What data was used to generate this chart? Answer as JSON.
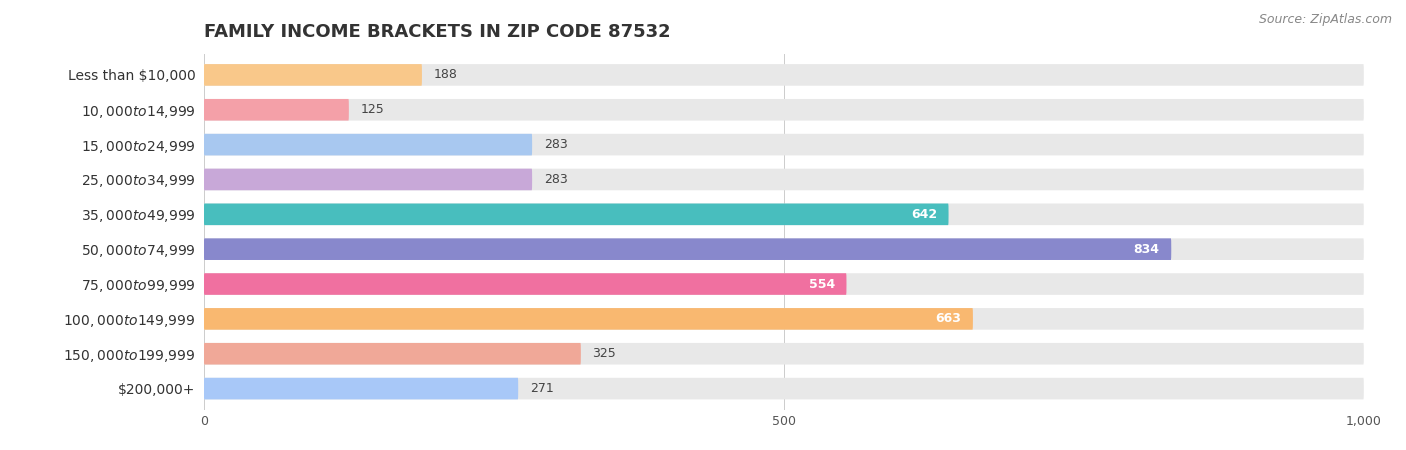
{
  "title": "FAMILY INCOME BRACKETS IN ZIP CODE 87532",
  "source": "Source: ZipAtlas.com",
  "categories": [
    "Less than $10,000",
    "$10,000 to $14,999",
    "$15,000 to $24,999",
    "$25,000 to $34,999",
    "$35,000 to $49,999",
    "$50,000 to $74,999",
    "$75,000 to $99,999",
    "$100,000 to $149,999",
    "$150,000 to $199,999",
    "$200,000+"
  ],
  "values": [
    188,
    125,
    283,
    283,
    642,
    834,
    554,
    663,
    325,
    271
  ],
  "bar_colors": [
    "#F9C88A",
    "#F4A0A8",
    "#A8C8F0",
    "#C8A8D8",
    "#48BEBE",
    "#8888CC",
    "#F070A0",
    "#F9B870",
    "#F0A898",
    "#A8C8F8"
  ],
  "xlim": [
    0,
    1000
  ],
  "xticks": [
    0,
    500,
    1000
  ],
  "xtick_labels": [
    "0",
    "500",
    "1,000"
  ],
  "title_fontsize": 13,
  "label_fontsize": 10,
  "value_fontsize": 9,
  "source_fontsize": 9,
  "bar_height": 0.62,
  "inside_threshold": 400,
  "inside_color": "white",
  "outside_color": "#444444",
  "bg_color": "#e8e8e8",
  "fig_bg": "#ffffff"
}
